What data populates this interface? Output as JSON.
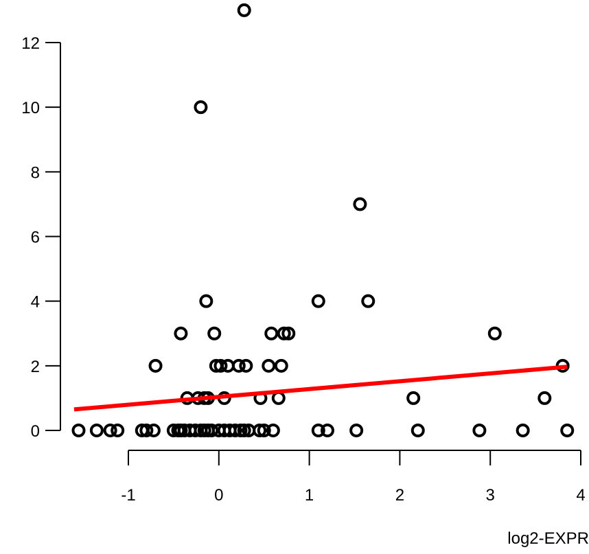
{
  "chart_data": {
    "type": "scatter",
    "title": "",
    "xlabel": "log2-EXPR",
    "ylabel": "",
    "xlim": [
      -1.6,
      3.9
    ],
    "ylim": [
      0,
      13
    ],
    "x_ticks": [
      -1,
      0,
      1,
      2,
      3,
      4
    ],
    "y_ticks": [
      0,
      2,
      4,
      6,
      8,
      10,
      12
    ],
    "grid": false,
    "legend": "none",
    "point_color": "#000000",
    "fit_line_color": "#ff0000",
    "points": [
      {
        "x": 0.28,
        "y": 13
      },
      {
        "x": -0.2,
        "y": 10
      },
      {
        "x": 1.56,
        "y": 7
      },
      {
        "x": -0.14,
        "y": 4
      },
      {
        "x": 1.1,
        "y": 4
      },
      {
        "x": 1.65,
        "y": 4
      },
      {
        "x": -0.42,
        "y": 3
      },
      {
        "x": -0.05,
        "y": 3
      },
      {
        "x": 0.58,
        "y": 3
      },
      {
        "x": 0.72,
        "y": 3
      },
      {
        "x": 0.77,
        "y": 3
      },
      {
        "x": 3.05,
        "y": 3
      },
      {
        "x": -0.7,
        "y": 2
      },
      {
        "x": -0.03,
        "y": 2
      },
      {
        "x": 0.02,
        "y": 2
      },
      {
        "x": 0.1,
        "y": 2
      },
      {
        "x": 0.22,
        "y": 2
      },
      {
        "x": 0.3,
        "y": 2
      },
      {
        "x": 0.55,
        "y": 2
      },
      {
        "x": 0.69,
        "y": 2
      },
      {
        "x": 3.8,
        "y": 2
      },
      {
        "x": -0.35,
        "y": 1
      },
      {
        "x": -0.23,
        "y": 1
      },
      {
        "x": -0.16,
        "y": 1
      },
      {
        "x": -0.12,
        "y": 1
      },
      {
        "x": 0.06,
        "y": 1
      },
      {
        "x": 0.46,
        "y": 1
      },
      {
        "x": 0.66,
        "y": 1
      },
      {
        "x": 2.15,
        "y": 1
      },
      {
        "x": 3.6,
        "y": 1
      },
      {
        "x": -1.55,
        "y": 0
      },
      {
        "x": -1.35,
        "y": 0
      },
      {
        "x": -1.2,
        "y": 0
      },
      {
        "x": -1.12,
        "y": 0
      },
      {
        "x": -0.85,
        "y": 0
      },
      {
        "x": -0.8,
        "y": 0
      },
      {
        "x": -0.72,
        "y": 0
      },
      {
        "x": -0.5,
        "y": 0
      },
      {
        "x": -0.45,
        "y": 0
      },
      {
        "x": -0.42,
        "y": 0
      },
      {
        "x": -0.38,
        "y": 0
      },
      {
        "x": -0.32,
        "y": 0
      },
      {
        "x": -0.26,
        "y": 0
      },
      {
        "x": -0.2,
        "y": 0
      },
      {
        "x": -0.16,
        "y": 0
      },
      {
        "x": -0.12,
        "y": 0
      },
      {
        "x": -0.08,
        "y": 0
      },
      {
        "x": 0.0,
        "y": 0
      },
      {
        "x": 0.06,
        "y": 0
      },
      {
        "x": 0.12,
        "y": 0
      },
      {
        "x": 0.18,
        "y": 0
      },
      {
        "x": 0.24,
        "y": 0
      },
      {
        "x": 0.28,
        "y": 0
      },
      {
        "x": 0.33,
        "y": 0
      },
      {
        "x": 0.45,
        "y": 0
      },
      {
        "x": 0.5,
        "y": 0
      },
      {
        "x": 0.6,
        "y": 0
      },
      {
        "x": 1.1,
        "y": 0
      },
      {
        "x": 1.2,
        "y": 0
      },
      {
        "x": 1.52,
        "y": 0
      },
      {
        "x": 2.2,
        "y": 0
      },
      {
        "x": 2.88,
        "y": 0
      },
      {
        "x": 3.36,
        "y": 0
      },
      {
        "x": 3.85,
        "y": 0
      }
    ],
    "fit_line": {
      "x": [
        -1.6,
        3.85
      ],
      "y": [
        0.65,
        1.97
      ]
    }
  }
}
